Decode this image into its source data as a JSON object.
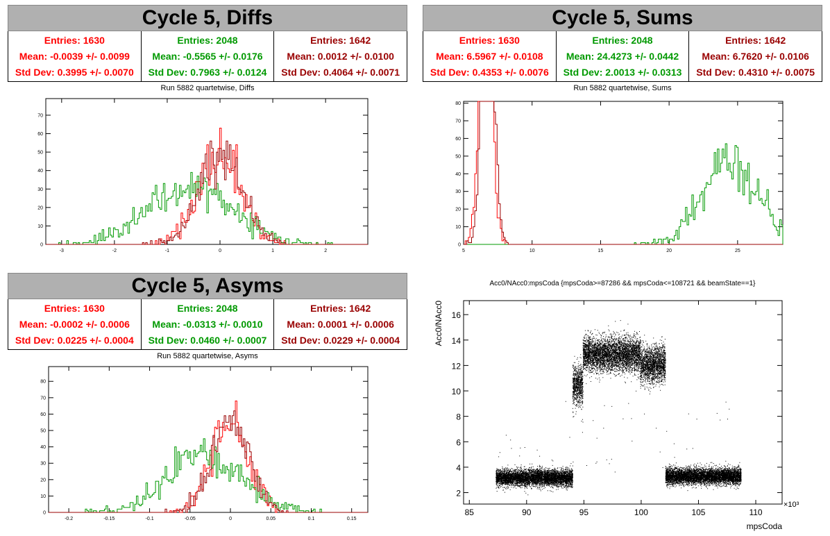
{
  "panels": [
    {
      "id": "diffs",
      "banner": "Cycle 5, Diffs",
      "stats": [
        {
          "entries": "Entries: 1630",
          "mean": "Mean: -0.0039 +/- 0.0099",
          "std": "Std Dev: 0.3995 +/- 0.0070",
          "color": "#ff0000"
        },
        {
          "entries": "Entries: 2048",
          "mean": "Mean: -0.5565 +/- 0.0176",
          "std": "Std Dev: 0.7963 +/- 0.0124",
          "color": "#009900"
        },
        {
          "entries": "Entries: 1642",
          "mean": "Mean: 0.0012 +/- 0.0100",
          "std": "Std Dev: 0.4064 +/- 0.0071",
          "color": "#990000"
        }
      ],
      "plot_title": "Run 5882 quartetwise, Diffs"
    },
    {
      "id": "sums",
      "banner": "Cycle 5, Sums",
      "stats": [
        {
          "entries": "Entries: 1630",
          "mean": "Mean: 6.5967 +/- 0.0108",
          "std": "Std Dev: 0.4353 +/- 0.0076",
          "color": "#ff0000"
        },
        {
          "entries": "Entries: 2048",
          "mean": "Mean: 24.4273 +/- 0.0442",
          "std": "Std Dev: 2.0013 +/- 0.0313",
          "color": "#009900"
        },
        {
          "entries": "Entries: 1642",
          "mean": "Mean: 6.7620 +/- 0.0106",
          "std": "Std Dev: 0.4310 +/- 0.0075",
          "color": "#990000"
        }
      ],
      "plot_title": "Run 5882 quartetwise, Sums"
    },
    {
      "id": "asyms",
      "banner": "Cycle 5, Asyms",
      "stats": [
        {
          "entries": "Entries: 1630",
          "mean": "Mean: -0.0002 +/- 0.0006",
          "std": "Std Dev: 0.0225 +/- 0.0004",
          "color": "#ff0000"
        },
        {
          "entries": "Entries: 2048",
          "mean": "Mean: -0.0313 +/- 0.0010",
          "std": "Std Dev: 0.0460 +/- 0.0007",
          "color": "#009900"
        },
        {
          "entries": "Entries: 1642",
          "mean": "Mean: 0.0001 +/- 0.0006",
          "std": "Std Dev: 0.0229 +/- 0.0004",
          "color": "#990000"
        }
      ],
      "plot_title": "Run 5882 quartetwise, Asyms"
    }
  ],
  "chart_data": [
    {
      "type": "histogram",
      "id": "diffs",
      "title": "Run 5882 quartetwise, Diffs",
      "xlim": [
        -3.3,
        2.8
      ],
      "ylim": [
        0,
        79
      ],
      "xticks": [
        -3,
        -2,
        -1,
        0,
        1,
        2
      ],
      "yticks": [
        0,
        10,
        20,
        30,
        40,
        50,
        60,
        70
      ],
      "series": [
        {
          "color": "#ff0000",
          "entries": 1630,
          "mean": -0.0039,
          "std": 0.3995
        },
        {
          "color": "#009900",
          "entries": 2048,
          "mean": -0.5565,
          "std": 0.7963
        },
        {
          "color": "#990000",
          "entries": 1642,
          "mean": 0.0012,
          "std": 0.4064
        }
      ]
    },
    {
      "type": "histogram",
      "id": "sums",
      "title": "Run 5882 quartetwise, Sums",
      "xlim": [
        5,
        28.3
      ],
      "ylim": [
        0,
        81
      ],
      "xticks": [
        5,
        10,
        15,
        20,
        25
      ],
      "yticks": [
        0,
        10,
        20,
        30,
        40,
        50,
        60,
        70,
        80
      ],
      "series": [
        {
          "color": "#ff0000",
          "entries": 1630,
          "mean": 6.5967,
          "std": 0.4353
        },
        {
          "color": "#009900",
          "entries": 2048,
          "mean": 24.4273,
          "std": 2.0013
        },
        {
          "color": "#990000",
          "entries": 1642,
          "mean": 6.762,
          "std": 0.431
        }
      ]
    },
    {
      "type": "histogram",
      "id": "asyms",
      "title": "Run 5882 quartetwise, Asyms",
      "xlim": [
        -0.225,
        0.17
      ],
      "ylim": [
        0,
        89
      ],
      "xticks": [
        -0.2,
        -0.15,
        -0.1,
        -0.05,
        0,
        0.05,
        0.1,
        0.15
      ],
      "yticks": [
        0,
        10,
        20,
        30,
        40,
        50,
        60,
        70,
        80
      ],
      "series": [
        {
          "color": "#ff0000",
          "entries": 1630,
          "mean": -0.0002,
          "std": 0.0225
        },
        {
          "color": "#009900",
          "entries": 2048,
          "mean": -0.0313,
          "std": 0.046
        },
        {
          "color": "#990000",
          "entries": 1642,
          "mean": 0.0001,
          "std": 0.0229
        }
      ]
    },
    {
      "type": "scatter",
      "id": "scatter",
      "title": "Acc0/NAcc0:mpsCoda {mpsCoda>=87286 && mpsCoda<=108721 && beamState==1}",
      "xlabel": "mpsCoda",
      "ylabel": "Acc0/NAcc0",
      "x_multiplier_label": "×10³",
      "xlim": [
        84.5,
        112.3
      ],
      "ylim": [
        1.1,
        17.1
      ],
      "xticks": [
        85,
        90,
        95,
        100,
        105,
        110
      ],
      "yticks": [
        2,
        4,
        6,
        8,
        10,
        12,
        14,
        16
      ],
      "segments": [
        {
          "x": [
            87.3,
            94.0
          ],
          "y_center": 3.2,
          "y_spread": 0.35
        },
        {
          "x": [
            94.0,
            94.9
          ],
          "y_center": 10.5,
          "y_spread": 0.9
        },
        {
          "x": [
            94.9,
            99.9
          ],
          "y_center": 12.9,
          "y_spread": 0.75
        },
        {
          "x": [
            99.9,
            102.1
          ],
          "y_center": 12.1,
          "y_spread": 0.8
        },
        {
          "x": [
            102.1,
            108.7
          ],
          "y_center": 3.3,
          "y_spread": 0.35
        }
      ]
    }
  ]
}
